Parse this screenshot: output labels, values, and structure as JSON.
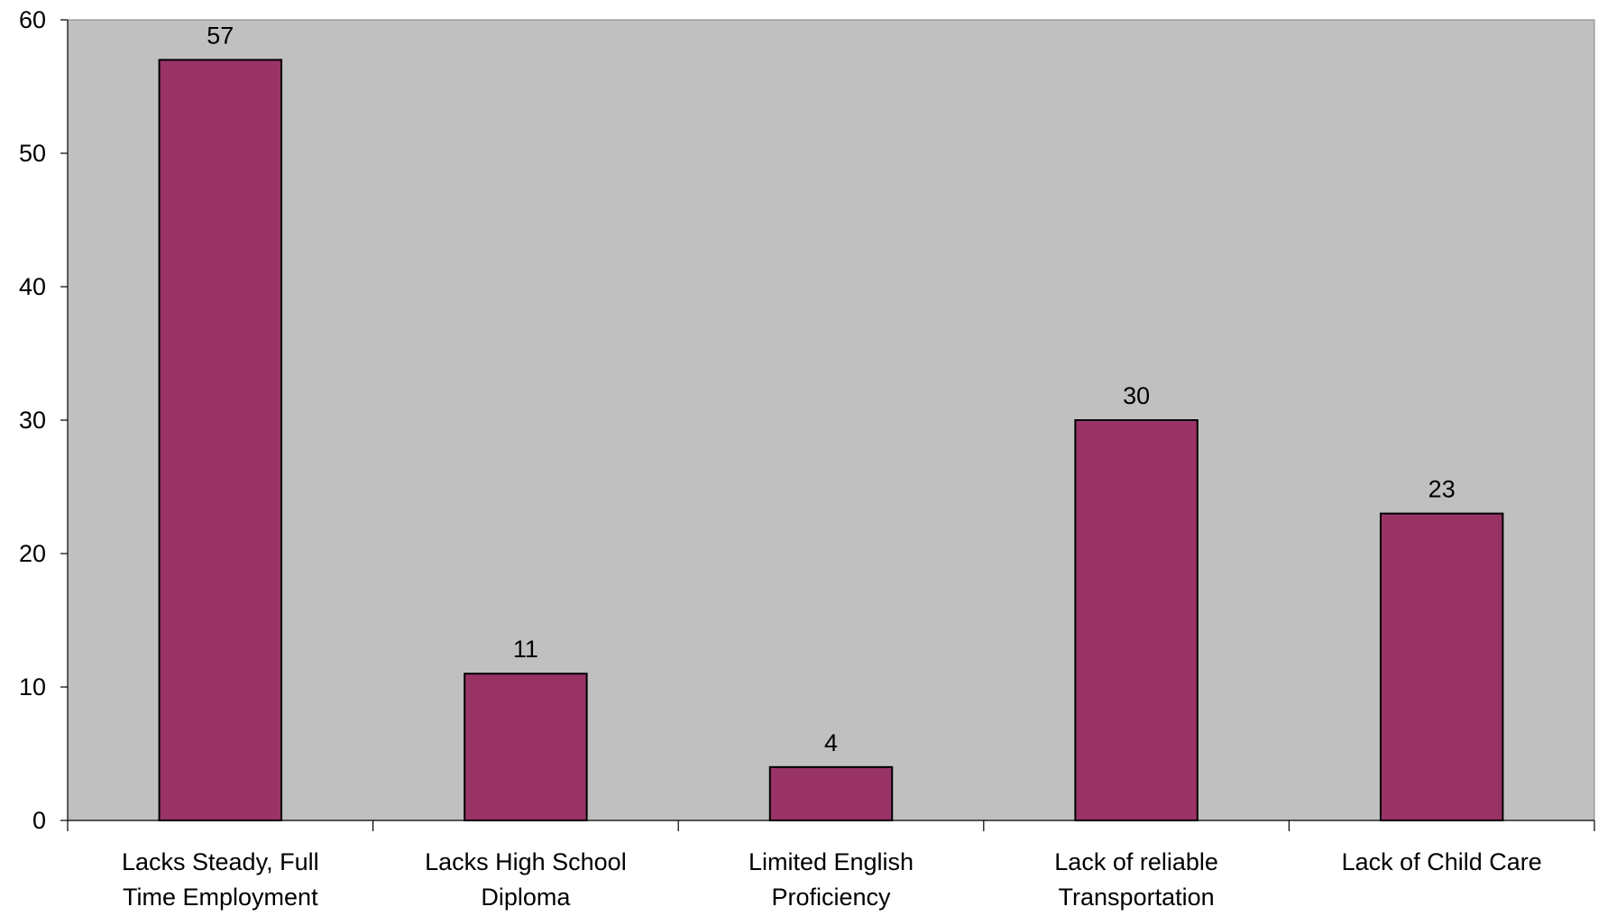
{
  "chart_data": {
    "type": "bar",
    "title": "",
    "xlabel": "",
    "ylabel": "",
    "categories": [
      [
        "Lacks Steady, Full",
        "Time Employment"
      ],
      [
        "Lacks High School",
        "Diploma"
      ],
      [
        "Limited English",
        "Proficiency"
      ],
      [
        "Lack of reliable",
        "Transportation"
      ],
      [
        "Lack of Child Care"
      ]
    ],
    "values": [
      57,
      11,
      4,
      30,
      23
    ],
    "ylim": [
      0,
      60
    ],
    "yticks": [
      0,
      10,
      20,
      30,
      40,
      50,
      60
    ],
    "grid": false,
    "legend": "none",
    "plot_background": "#c0c0c0",
    "bar_color": "#993366",
    "bar_edge_color": "#000000"
  }
}
